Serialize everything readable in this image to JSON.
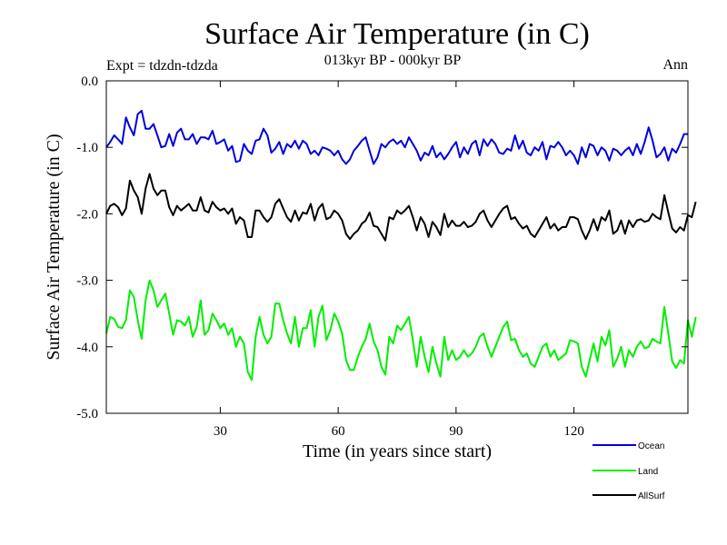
{
  "chart_data": {
    "type": "line",
    "title": "Surface Air Temperature (in C)",
    "subtitle": "013kyr BP - 000kyr BP",
    "left_label": "Expt = tdzdn-tdzda",
    "right_label": "Ann",
    "xlabel": "Time (in years since start)",
    "ylabel": "Surface Air Temperature (in C)",
    "xlim": [
      1,
      149
    ],
    "ylim": [
      -5.0,
      0.0
    ],
    "x_ticks": [
      30,
      60,
      90,
      120
    ],
    "x_tick_labels": [
      "30",
      "60",
      "90",
      "120"
    ],
    "y_ticks": [
      0.0,
      -1.0,
      -2.0,
      -3.0,
      -4.0,
      -5.0
    ],
    "y_tick_labels": [
      "0.0",
      "-1.0",
      "-2.0",
      "-3.0",
      "-4.0",
      "-5.0"
    ],
    "legend_position": "bottom-right",
    "series": [
      {
        "name": "Ocean",
        "color": "#0000dd",
        "values": [
          -1.0,
          -0.92,
          -0.82,
          -0.88,
          -0.95,
          -0.55,
          -0.7,
          -0.82,
          -0.5,
          -0.45,
          -0.72,
          -0.72,
          -0.65,
          -0.82,
          -1.0,
          -0.98,
          -0.8,
          -0.98,
          -0.78,
          -0.72,
          -0.88,
          -0.88,
          -0.8,
          -0.95,
          -0.85,
          -0.85,
          -0.88,
          -0.75,
          -0.95,
          -0.92,
          -0.88,
          -1.05,
          -0.98,
          -1.22,
          -1.2,
          -0.95,
          -1.05,
          -1.1,
          -0.9,
          -0.88,
          -0.72,
          -0.82,
          -1.08,
          -1.02,
          -0.92,
          -1.1,
          -0.95,
          -1.0,
          -0.9,
          -1.02,
          -0.9,
          -0.95,
          -1.1,
          -1.05,
          -1.12,
          -1.0,
          -1.02,
          -1.05,
          -1.12,
          -1.05,
          -1.18,
          -1.25,
          -1.18,
          -1.05,
          -0.98,
          -0.9,
          -0.85,
          -1.05,
          -1.25,
          -1.15,
          -0.95,
          -1.0,
          -0.92,
          -0.88,
          -0.95,
          -0.9,
          -1.0,
          -0.85,
          -0.95,
          -1.05,
          -1.2,
          -1.08,
          -1.12,
          -0.98,
          -1.15,
          -1.08,
          -1.18,
          -1.1,
          -1.0,
          -0.92,
          -1.15,
          -1.0,
          -1.1,
          -0.95,
          -0.9,
          -1.12,
          -0.88,
          -0.98,
          -0.88,
          -0.95,
          -1.08,
          -1.1,
          -1.02,
          -1.05,
          -0.82,
          -1.02,
          -0.9,
          -1.08,
          -1.12,
          -1.0,
          -1.05,
          -0.92,
          -1.18,
          -0.98,
          -1.0,
          -0.92,
          -1.0,
          -1.12,
          -1.05,
          -1.12,
          -1.25,
          -1.0,
          -1.15,
          -0.95,
          -0.98,
          -1.12,
          -1.0,
          -1.05,
          -1.2,
          -1.02,
          -1.05,
          -1.12,
          -1.05,
          -1.0,
          -1.12,
          -0.95,
          -1.1,
          -0.92,
          -0.7,
          -0.9,
          -1.15,
          -1.1,
          -1.0,
          -1.2,
          -1.02,
          -1.08,
          -0.95,
          -0.8,
          -0.8
        ]
      },
      {
        "name": "Land",
        "color": "#00ee00",
        "values": [
          -3.8,
          -3.55,
          -3.58,
          -3.7,
          -3.72,
          -3.6,
          -3.15,
          -3.25,
          -3.6,
          -3.88,
          -3.3,
          -3.0,
          -3.15,
          -3.4,
          -3.3,
          -3.2,
          -3.5,
          -3.82,
          -3.6,
          -3.62,
          -3.68,
          -3.55,
          -3.85,
          -3.7,
          -3.3,
          -3.82,
          -3.75,
          -3.5,
          -3.6,
          -3.72,
          -3.65,
          -3.82,
          -3.72,
          -4.0,
          -3.85,
          -3.95,
          -4.38,
          -4.5,
          -3.85,
          -3.55,
          -3.82,
          -3.95,
          -3.85,
          -3.35,
          -3.35,
          -3.6,
          -3.8,
          -3.95,
          -3.55,
          -4.0,
          -3.72,
          -3.72,
          -3.45,
          -4.0,
          -3.55,
          -3.38,
          -3.9,
          -3.75,
          -3.5,
          -3.62,
          -3.8,
          -4.2,
          -4.35,
          -4.35,
          -4.15,
          -4.0,
          -3.88,
          -3.65,
          -3.92,
          -4.05,
          -4.3,
          -4.42,
          -3.85,
          -3.95,
          -3.68,
          -3.75,
          -3.65,
          -3.55,
          -3.9,
          -4.3,
          -3.85,
          -4.15,
          -4.38,
          -4.0,
          -4.25,
          -4.45,
          -3.85,
          -4.2,
          -4.05,
          -4.2,
          -4.15,
          -4.05,
          -4.15,
          -4.1,
          -4.0,
          -3.85,
          -3.8,
          -4.0,
          -4.15,
          -4.0,
          -3.85,
          -3.7,
          -3.62,
          -3.9,
          -3.88,
          -4.05,
          -4.15,
          -4.1,
          -4.25,
          -4.3,
          -4.15,
          -4.0,
          -3.95,
          -4.15,
          -4.05,
          -4.2,
          -4.15,
          -4.1,
          -3.9,
          -3.92,
          -3.95,
          -4.3,
          -4.45,
          -4.2,
          -3.95,
          -4.22,
          -3.85,
          -3.98,
          -3.75,
          -4.3,
          -4.18,
          -4.0,
          -4.3,
          -4.05,
          -4.15,
          -4.0,
          -3.92,
          -4.02,
          -4.0,
          -3.88,
          -3.92,
          -3.95,
          -3.4,
          -3.8,
          -4.22,
          -4.32,
          -4.2,
          -4.25,
          -3.6,
          -3.85,
          -3.55
        ]
      },
      {
        "name": "AllSurf",
        "color": "#000000",
        "values": [
          -2.0,
          -1.88,
          -1.85,
          -1.9,
          -2.02,
          -1.92,
          -1.5,
          -1.65,
          -1.75,
          -2.0,
          -1.62,
          -1.4,
          -1.62,
          -1.72,
          -1.65,
          -1.65,
          -1.9,
          -2.02,
          -1.88,
          -1.95,
          -1.9,
          -1.85,
          -1.95,
          -1.95,
          -1.75,
          -1.95,
          -1.98,
          -1.82,
          -1.9,
          -1.95,
          -1.92,
          -2.0,
          -1.92,
          -2.15,
          -2.05,
          -2.1,
          -2.35,
          -2.35,
          -1.95,
          -1.95,
          -2.05,
          -2.12,
          -2.05,
          -1.85,
          -1.78,
          -1.92,
          -2.05,
          -2.12,
          -1.95,
          -2.1,
          -1.98,
          -2.0,
          -1.85,
          -2.1,
          -1.92,
          -1.85,
          -2.08,
          -2.05,
          -1.95,
          -2.0,
          -2.1,
          -2.3,
          -2.38,
          -2.3,
          -2.25,
          -2.15,
          -2.1,
          -1.98,
          -2.18,
          -2.2,
          -2.3,
          -2.4,
          -2.05,
          -2.08,
          -1.95,
          -2.0,
          -1.95,
          -1.88,
          -2.05,
          -2.25,
          -2.05,
          -2.15,
          -2.35,
          -2.12,
          -2.2,
          -2.32,
          -2.0,
          -2.2,
          -2.1,
          -2.18,
          -2.18,
          -2.12,
          -2.2,
          -2.18,
          -2.12,
          -2.0,
          -1.95,
          -2.1,
          -2.2,
          -2.1,
          -2.0,
          -1.92,
          -1.88,
          -2.08,
          -2.05,
          -2.15,
          -2.22,
          -2.18,
          -2.3,
          -2.35,
          -2.25,
          -2.15,
          -2.05,
          -2.22,
          -2.15,
          -2.25,
          -2.2,
          -2.2,
          -2.05,
          -2.05,
          -2.08,
          -2.25,
          -2.38,
          -2.25,
          -2.08,
          -2.25,
          -2.05,
          -2.1,
          -1.95,
          -2.3,
          -2.25,
          -2.1,
          -2.3,
          -2.1,
          -2.2,
          -2.1,
          -2.08,
          -2.12,
          -2.1,
          -2.0,
          -2.05,
          -2.08,
          -1.72,
          -1.98,
          -2.22,
          -2.28,
          -2.2,
          -2.25,
          -2.02,
          -2.05,
          -1.82
        ]
      }
    ]
  }
}
